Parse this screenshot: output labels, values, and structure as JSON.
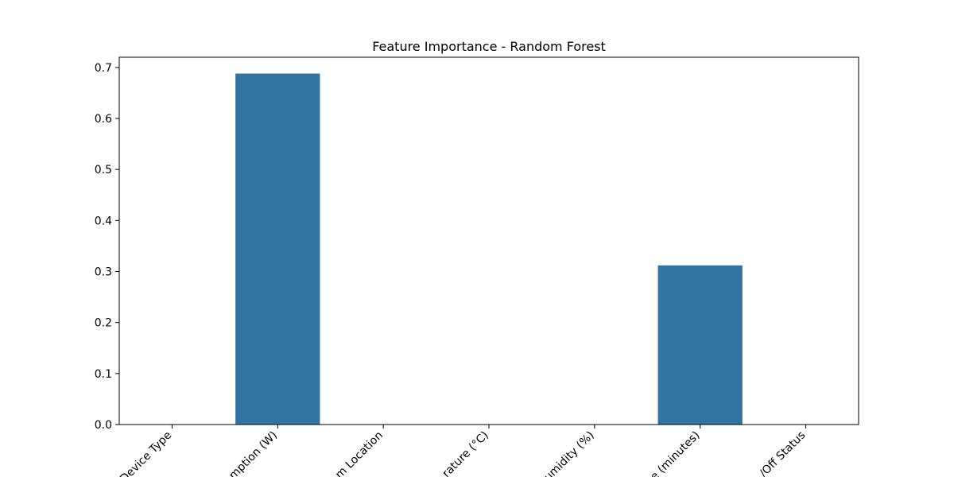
{
  "chart_data": {
    "type": "bar",
    "title": "Feature Importance - Random Forest",
    "xlabel": "",
    "ylabel": "",
    "categories": [
      "Device Type",
      "Power Consumption (W)",
      "Room Location",
      "Temperature (°C)",
      "Humidity (%)",
      "Usage Time (minutes)",
      "On/Off Status"
    ],
    "tick_labels_visible": [
      "Device Type",
      "mption (W)",
      "m Location",
      "rature (°C)",
      "umidity (%)",
      "e (minutes)",
      "/Off Status"
    ],
    "values": [
      0.0,
      0.688,
      0.0,
      0.0,
      0.0,
      0.312,
      0.0
    ],
    "ylim": [
      0,
      0.72
    ],
    "yticks": [
      "0.0",
      "0.1",
      "0.2",
      "0.3",
      "0.4",
      "0.5",
      "0.6",
      "0.7"
    ],
    "grid": false,
    "legend": "none",
    "bar_color": "#3274a1"
  }
}
